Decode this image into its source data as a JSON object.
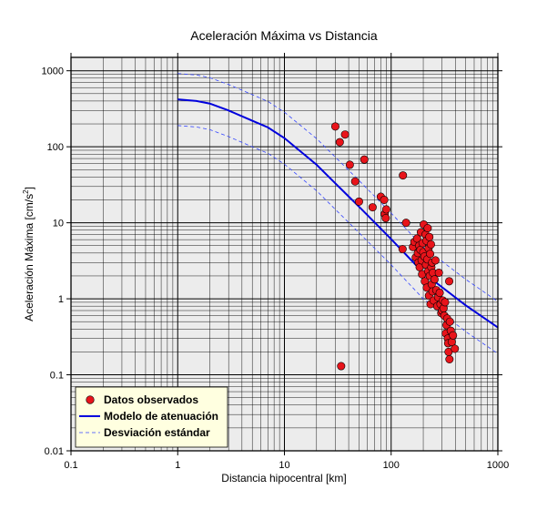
{
  "chart_data": {
    "type": "scatter",
    "title": "Aceleración Máxima vs Distancia",
    "xlabel": "Distancia hipocentral [km]",
    "ylabel_main": "Aceleración Máxima [cm/s",
    "ylabel_sup": "2",
    "ylabel_end": "]",
    "x_scale": "log",
    "y_scale": "log",
    "xlim": [
      0.1,
      1000
    ],
    "ylim": [
      0.01,
      1500
    ],
    "grid": true,
    "legend_position": "bottom-left",
    "x_ticks": [
      {
        "value": 0.1,
        "label": "0.1"
      },
      {
        "value": 1,
        "label": "1"
      },
      {
        "value": 10,
        "label": "10"
      },
      {
        "value": 100,
        "label": "100"
      },
      {
        "value": 1000,
        "label": "1000"
      }
    ],
    "y_ticks": [
      {
        "value": 0.01,
        "label": "0.01"
      },
      {
        "value": 0.1,
        "label": "0.1"
      },
      {
        "value": 1,
        "label": "1"
      },
      {
        "value": 10,
        "label": "10"
      },
      {
        "value": 100,
        "label": "100"
      },
      {
        "value": 1000,
        "label": "1000"
      }
    ],
    "colors": {
      "plot_bg": "#ececec",
      "points": "#e8141b",
      "model": "#0000dd",
      "std": "#3344ff",
      "legend_bg": "#ffffe0"
    },
    "series": [
      {
        "name": "Datos observados",
        "kind": "points",
        "points": [
          [
            30,
            185
          ],
          [
            33,
            115
          ],
          [
            37,
            145
          ],
          [
            41,
            58
          ],
          [
            46,
            35
          ],
          [
            50,
            19
          ],
          [
            56,
            68
          ],
          [
            67,
            16
          ],
          [
            80,
            22
          ],
          [
            86,
            20
          ],
          [
            87,
            13
          ],
          [
            89,
            11.5
          ],
          [
            90,
            15
          ],
          [
            129,
            42
          ],
          [
            138,
            10
          ],
          [
            34,
            0.13
          ],
          [
            128,
            4.5
          ],
          [
            160,
            4.8
          ],
          [
            165,
            5.6
          ],
          [
            170,
            3.5
          ],
          [
            175,
            6.2
          ],
          [
            178,
            4.0
          ],
          [
            180,
            3.0
          ],
          [
            183,
            5.0
          ],
          [
            185,
            2.6
          ],
          [
            188,
            4.4
          ],
          [
            190,
            7.5
          ],
          [
            193,
            3.2
          ],
          [
            195,
            2.1
          ],
          [
            197,
            5.4
          ],
          [
            200,
            4.1
          ],
          [
            202,
            9.5
          ],
          [
            205,
            3.6
          ],
          [
            207,
            1.7
          ],
          [
            210,
            7.0
          ],
          [
            212,
            2.8
          ],
          [
            214,
            5.8
          ],
          [
            216,
            1.4
          ],
          [
            218,
            3.3
          ],
          [
            220,
            8.5
          ],
          [
            222,
            2.3
          ],
          [
            224,
            4.6
          ],
          [
            226,
            1.1
          ],
          [
            228,
            6.5
          ],
          [
            230,
            2.0
          ],
          [
            232,
            3.9
          ],
          [
            234,
            0.85
          ],
          [
            236,
            5.2
          ],
          [
            238,
            2.6
          ],
          [
            240,
            1.55
          ],
          [
            242,
            3.0
          ],
          [
            244,
            1.25
          ],
          [
            246,
            2.2
          ],
          [
            250,
            0.95
          ],
          [
            255,
            1.8
          ],
          [
            260,
            3.2
          ],
          [
            265,
            1.3
          ],
          [
            270,
            0.8
          ],
          [
            275,
            1.05
          ],
          [
            280,
            2.2
          ],
          [
            285,
            1.2
          ],
          [
            290,
            0.85
          ],
          [
            295,
            0.65
          ],
          [
            300,
            0.7
          ],
          [
            305,
            0.95
          ],
          [
            310,
            0.75
          ],
          [
            315,
            0.6
          ],
          [
            320,
            0.9
          ],
          [
            325,
            0.35
          ],
          [
            330,
            0.45
          ],
          [
            335,
            0.55
          ],
          [
            340,
            0.3
          ],
          [
            342,
            0.26
          ],
          [
            345,
            0.2
          ],
          [
            350,
            1.7
          ],
          [
            352,
            0.16
          ],
          [
            355,
            0.5
          ],
          [
            362,
            0.38
          ],
          [
            370,
            0.27
          ],
          [
            380,
            0.33
          ],
          [
            395,
            0.22
          ]
        ]
      },
      {
        "name": "Modelo de atenuación",
        "kind": "line",
        "x": [
          1,
          1.5,
          2,
          3,
          5,
          7,
          10,
          20,
          30,
          50,
          100,
          200,
          500,
          1000
        ],
        "y": [
          420,
          400,
          370,
          300,
          220,
          180,
          130,
          58,
          33,
          16.3,
          6.1,
          2.2,
          0.82,
          0.42
        ]
      },
      {
        "name": "Desviación estándar",
        "kind": "dashed",
        "upper": {
          "x": [
            1,
            1.5,
            2,
            3,
            5,
            7,
            10,
            20,
            30,
            50,
            100,
            200,
            500,
            1000
          ],
          "y": [
            920,
            880,
            810,
            660,
            485,
            395,
            285,
            128,
            73,
            36,
            13.4,
            4.8,
            1.8,
            0.92
          ]
        },
        "lower": {
          "x": [
            1,
            1.5,
            2,
            3,
            5,
            7,
            10,
            20,
            30,
            50,
            100,
            200,
            500,
            1000
          ],
          "y": [
            190,
            182,
            168,
            136,
            100,
            82,
            59,
            26.4,
            15,
            7.4,
            2.8,
            1.0,
            0.37,
            0.19
          ]
        }
      }
    ]
  }
}
